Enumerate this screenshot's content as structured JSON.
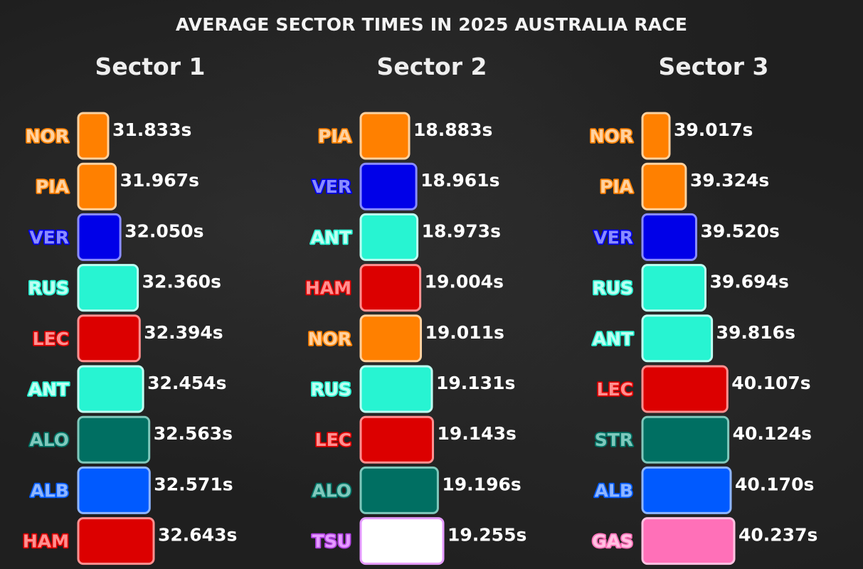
{
  "title": "AVERAGE SECTOR TIMES IN 2025 AUSTRALIA RACE",
  "team_colors": {
    "McLaren": "#FF8000",
    "Red Bull": "#0000E8",
    "Mercedes": "#27F4D2",
    "Ferrari": "#DC0000",
    "Aston Martin": "#006F62",
    "Williams": "#005AFF",
    "Racing Bulls": "#FFFFFF",
    "Alpine": "#FF70B8"
  },
  "chart_data": [
    {
      "type": "bar",
      "title": "Sector 1",
      "categories": [
        "NOR",
        "PIA",
        "VER",
        "RUS",
        "LEC",
        "ANT",
        "ALO",
        "ALB",
        "HAM"
      ],
      "values": [
        31.833,
        31.967,
        32.05,
        32.36,
        32.394,
        32.454,
        32.563,
        32.571,
        32.643
      ],
      "labels": [
        "31.833s",
        "31.967s",
        "32.050s",
        "32.360s",
        "32.394s",
        "32.454s",
        "32.563s",
        "32.571s",
        "32.643s"
      ],
      "colors": [
        "#FF8000",
        "#FF8000",
        "#0000E8",
        "#27F4D2",
        "#DC0000",
        "#27F4D2",
        "#006F62",
        "#005AFF",
        "#DC0000"
      ],
      "borders": [
        "#FFD2A0",
        "#FFD2A0",
        "#8A8CFF",
        "#BFFFF2",
        "#FF9090",
        "#BFFFF2",
        "#7FC8BC",
        "#8FB6FF",
        "#FF9090"
      ],
      "xlim": [
        31.7,
        32.7
      ]
    },
    {
      "type": "bar",
      "title": "Sector 2",
      "categories": [
        "PIA",
        "VER",
        "ANT",
        "HAM",
        "NOR",
        "RUS",
        "LEC",
        "ALO",
        "TSU"
      ],
      "values": [
        18.883,
        18.961,
        18.973,
        19.004,
        19.011,
        19.131,
        19.143,
        19.196,
        19.255
      ],
      "labels": [
        "18.883s",
        "18.961s",
        "18.973s",
        "19.004s",
        "19.011s",
        "19.131s",
        "19.143s",
        "19.196s",
        "19.255s"
      ],
      "colors": [
        "#FF8000",
        "#0000E8",
        "#27F4D2",
        "#DC0000",
        "#FF8000",
        "#27F4D2",
        "#DC0000",
        "#006F62",
        "#FFFFFF"
      ],
      "borders": [
        "#FFD2A0",
        "#8A8CFF",
        "#BFFFF2",
        "#FF9090",
        "#FFD2A0",
        "#BFFFF2",
        "#FF9090",
        "#7FC8BC",
        "#E59BFF"
      ],
      "xlim": [
        18.75,
        19.3
      ]
    },
    {
      "type": "bar",
      "title": "Sector 3",
      "categories": [
        "NOR",
        "PIA",
        "VER",
        "RUS",
        "ANT",
        "LEC",
        "STR",
        "ALB",
        "GAS"
      ],
      "values": [
        39.017,
        39.324,
        39.52,
        39.694,
        39.816,
        40.107,
        40.124,
        40.17,
        40.237
      ],
      "labels": [
        "39.017s",
        "39.324s",
        "39.520s",
        "39.694s",
        "39.816s",
        "40.107s",
        "40.124s",
        "40.170s",
        "40.237s"
      ],
      "colors": [
        "#FF8000",
        "#FF8000",
        "#0000E8",
        "#27F4D2",
        "#27F4D2",
        "#DC0000",
        "#006F62",
        "#005AFF",
        "#FF70B8"
      ],
      "borders": [
        "#FFD2A0",
        "#FFD2A0",
        "#8A8CFF",
        "#BFFFF2",
        "#BFFFF2",
        "#FF9090",
        "#7FC8BC",
        "#8FB6FF",
        "#FFC2E2"
      ],
      "xlim": [
        38.8,
        40.3
      ]
    }
  ]
}
